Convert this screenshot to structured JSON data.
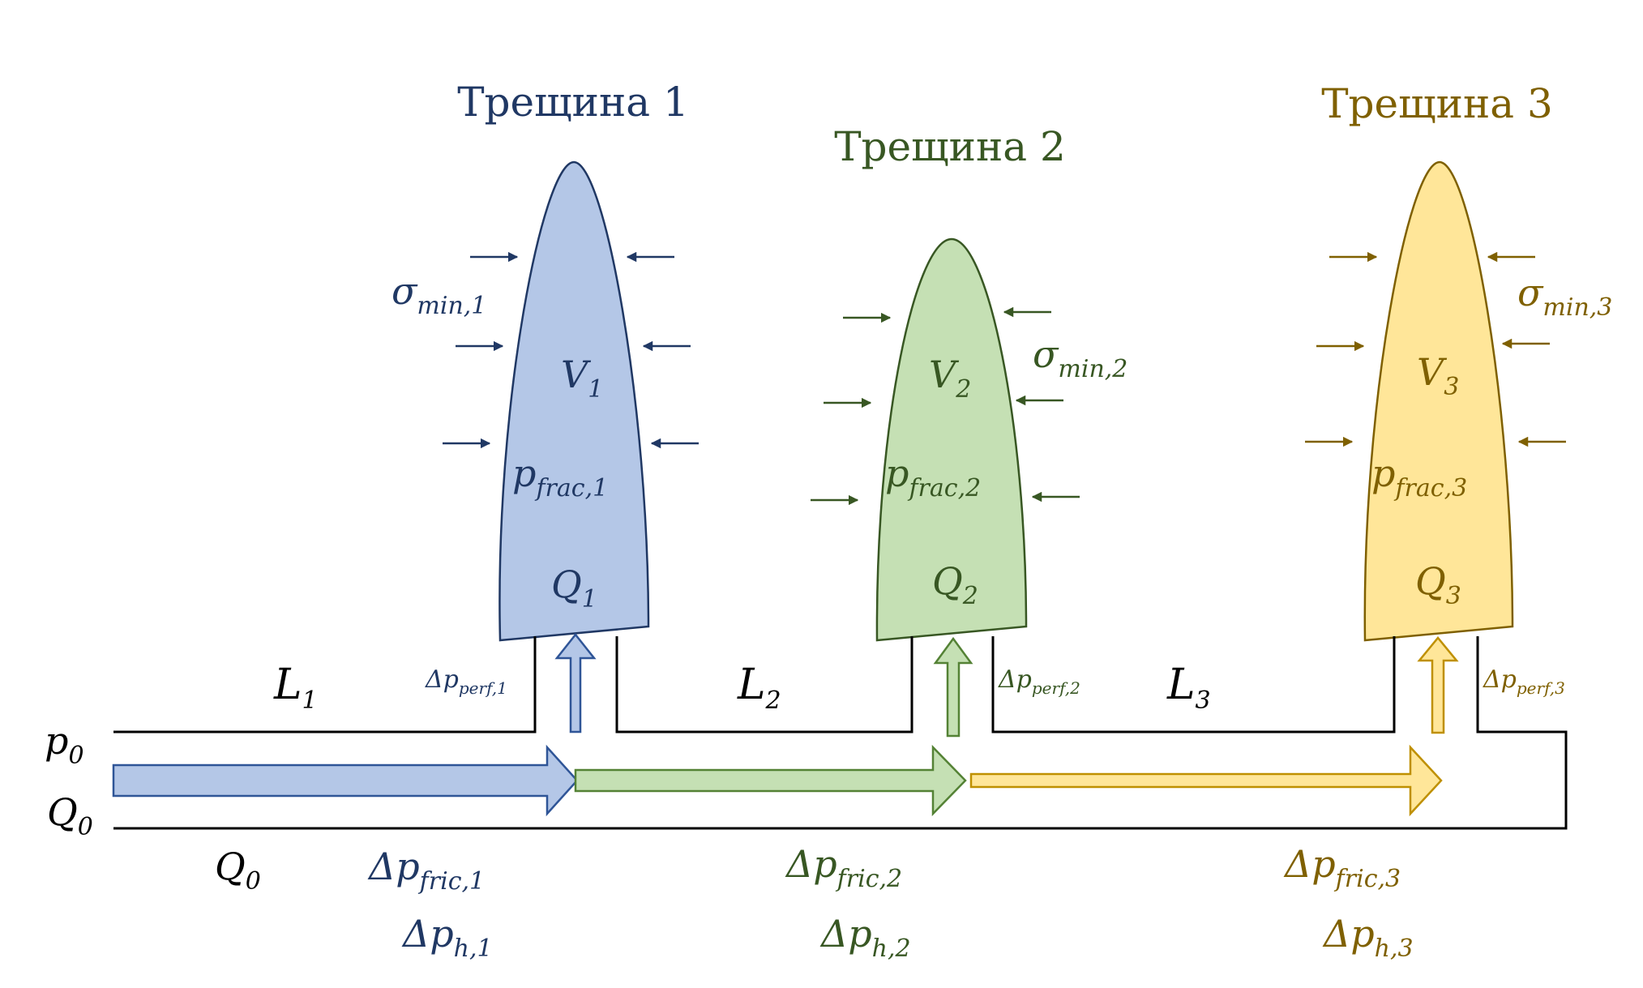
{
  "colors": {
    "blue_fill": "#b4c7e7",
    "blue_stroke": "#203864",
    "green_fill": "#c5e0b4",
    "green_stroke": "#385723",
    "yellow_fill": "#ffe699",
    "yellow_stroke": "#7f6000",
    "line": "#000000"
  },
  "fractures": [
    {
      "title": "Трещина 1",
      "sigma": "σ",
      "sigma_sub": "min,1",
      "V": "V",
      "V_sub": "1",
      "p": "p",
      "p_sub": "frac,1",
      "Q": "Q",
      "Q_sub": "1",
      "perf": "Δp",
      "perf_sub": "perf,1"
    },
    {
      "title": "Трещина 2",
      "sigma": "σ",
      "sigma_sub": "min,2",
      "V": "V",
      "V_sub": "2",
      "p": "p",
      "p_sub": "frac,2",
      "Q": "Q",
      "Q_sub": "2",
      "perf": "Δp",
      "perf_sub": "perf,2"
    },
    {
      "title": "Трещина 3",
      "sigma": "σ",
      "sigma_sub": "min,3",
      "V": "V",
      "V_sub": "3",
      "p": "p",
      "p_sub": "frac,3",
      "Q": "Q",
      "Q_sub": "3",
      "perf": "Δp",
      "perf_sub": "perf,3"
    }
  ],
  "segments": [
    {
      "L": "L",
      "L_sub": "1",
      "fric": "Δp",
      "fric_sub": "fric,1",
      "h": "Δp",
      "h_sub": "h,1"
    },
    {
      "L": "L",
      "L_sub": "2",
      "fric": "Δp",
      "fric_sub": "fric,2",
      "h": "Δp",
      "h_sub": "h,2"
    },
    {
      "L": "L",
      "L_sub": "3",
      "fric": "Δp",
      "fric_sub": "fric,3",
      "h": "Δp",
      "h_sub": "h,3"
    }
  ],
  "inlet": {
    "p0": "p",
    "p0_sub": "0",
    "Q0_left": "Q",
    "Q0_left_sub": "0",
    "Q0_below": "Q",
    "Q0_below_sub": "0"
  }
}
